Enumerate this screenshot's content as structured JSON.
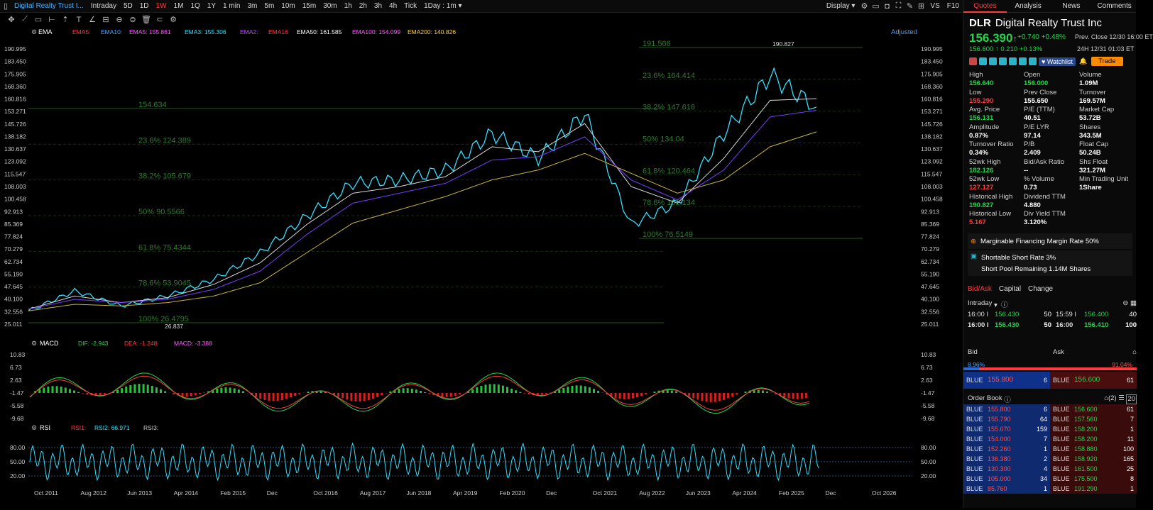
{
  "toolbar": {
    "title": "Digital Realty Trust I...",
    "periods": [
      "Intraday",
      "5D",
      "1D",
      "1W",
      "1M",
      "1Q",
      "1Y",
      "1 min",
      "3m",
      "5m",
      "10m",
      "15m",
      "30m",
      "1h",
      "2h",
      "3h",
      "4h",
      "Tick"
    ],
    "active_period": "1W",
    "interval": "1Day : 1m",
    "display": "Display",
    "vs": "VS",
    "f10": "F10"
  },
  "indicators": {
    "ema": {
      "name": "EMA",
      "items": [
        {
          "label": "EMA5:",
          "value": "",
          "color": "#ff3b3b"
        },
        {
          "label": "EMA10:",
          "value": "",
          "color": "#4aa3ff"
        },
        {
          "label": "EMA5:",
          "value": "155.861",
          "color": "#ff5cff"
        },
        {
          "label": "EMA3:",
          "value": "155.306",
          "color": "#33e0ff"
        },
        {
          "label": "EMA2:",
          "value": "",
          "color": "#c04cff"
        },
        {
          "label": "EMA16",
          "value": "",
          "color": "#ff3b3b"
        },
        {
          "label": "EMA50:",
          "value": "161.585",
          "color": "#ffffff"
        },
        {
          "label": "EMA100:",
          "value": "154.099",
          "color": "#ff5cff"
        },
        {
          "label": "EMA200:",
          "value": "140.826",
          "color": "#ffd23b"
        }
      ]
    },
    "macd": {
      "name": "MACD",
      "dif": "DIF: -2.943",
      "dea": "DEA: -1.248",
      "macd": "MACD: -3.388"
    },
    "rsi": {
      "name": "RSI",
      "rsi1": "RSI1:",
      "rsi2": "RSI2: 66.971",
      "rsi3": "RSI3:"
    },
    "adjusted": "Adjusted"
  },
  "price_axis": [
    "190.995",
    "183.450",
    "175.905",
    "168.360",
    "160.816",
    "153.271",
    "145.726",
    "138.182",
    "130.637",
    "123.092",
    "115.547",
    "108.003",
    "100.458",
    "92.913",
    "85.369",
    "77.824",
    "70.279",
    "62.734",
    "55.190",
    "47.645",
    "40.100",
    "32.556",
    "25.011"
  ],
  "macd_axis": [
    "10.83",
    "6.73",
    "2.63",
    "-1.47",
    "-5.58",
    "-9.68"
  ],
  "rsi_axis": [
    "80.00",
    "50.00",
    "20.00"
  ],
  "time_axis": [
    "Oct 2011",
    "Aug 2012",
    "Jun 2013",
    "Apr 2014",
    "Feb 2015",
    "Dec",
    "Oct 2016",
    "Aug 2017",
    "Jun 2018",
    "Apr 2019",
    "Feb 2020",
    "Dec",
    "Oct 2021",
    "Aug 2022",
    "Jun 2023",
    "Apr 2024",
    "Feb 2025",
    "Dec",
    "Oct 2026"
  ],
  "fib_left": [
    "154.634",
    "23.6% 124.389",
    "38.2% 105.679",
    "50% 90.5566",
    "61.8% 75.4344",
    "78.6% 53.9045",
    "100% 26.4795"
  ],
  "fib_right": [
    "191.566",
    "23.6% 164.414",
    "38.2% 147.616",
    "50% 134.04",
    "61.8% 120.464",
    "78.6% 101.134",
    "100% 76.5149"
  ],
  "annotations": {
    "high": "190.827",
    "low": "26.837"
  },
  "chart_data": {
    "type": "line",
    "title": "",
    "xlabel": "",
    "ylabel": "",
    "ylim": [
      25.011,
      190.995
    ],
    "x": [
      "Oct 2011",
      "Aug 2012",
      "Jun 2013",
      "Apr 2014",
      "Feb 2015",
      "Dec 2015",
      "Oct 2016",
      "Aug 2017",
      "Jun 2018",
      "Apr 2019",
      "Feb 2020",
      "Dec 2020",
      "Oct 2021",
      "Aug 2022",
      "Jun 2023",
      "Apr 2024",
      "Feb 2025",
      "Dec 2025"
    ],
    "series": [
      {
        "name": "Price",
        "values": [
          33,
          45,
          36,
          42,
          52,
          68,
          90,
          110,
          112,
          118,
          140,
          125,
          152,
          85,
          98,
          140,
          175,
          156
        ]
      },
      {
        "name": "EMA50",
        "values": [
          34,
          42,
          38,
          41,
          49,
          62,
          85,
          104,
          108,
          114,
          132,
          129,
          146,
          108,
          98,
          125,
          160,
          161
        ]
      },
      {
        "name": "EMA100",
        "values": [
          34,
          40,
          38,
          40,
          46,
          57,
          79,
          98,
          104,
          110,
          124,
          126,
          138,
          112,
          100,
          118,
          150,
          154
        ]
      },
      {
        "name": "EMA200",
        "values": [
          33,
          37,
          36,
          38,
          42,
          50,
          68,
          86,
          94,
          102,
          112,
          118,
          128,
          116,
          104,
          112,
          132,
          141
        ]
      }
    ]
  },
  "quote": {
    "tabs": [
      "Quotes",
      "Analysis",
      "News",
      "Comments"
    ],
    "active_tab": "Quotes",
    "symbol": "DLR",
    "name": "Digital Realty Trust Inc",
    "price": "156.390",
    "arrow": "↑",
    "change": "+0.740 +0.48%",
    "prev_close": "Prev.  Close 12/30 16:00 ET",
    "ah_price": "156.600 ↑ 0.210 +0.13%",
    "ah_time": "24H 12/31 01:03 ET",
    "watchlist": "Watchlist",
    "trade": "Trade",
    "stats": [
      {
        "label": "High",
        "value": "156.640",
        "cls": "g"
      },
      {
        "label": "Open",
        "value": "156.000",
        "cls": "g"
      },
      {
        "label": "Volume",
        "value": "1.09M",
        "cls": ""
      },
      {
        "label": "Low",
        "value": "155.290",
        "cls": "r"
      },
      {
        "label": "Prev Close",
        "value": "155.650",
        "cls": ""
      },
      {
        "label": "Turnover",
        "value": "169.57M",
        "cls": ""
      },
      {
        "label": "Avg. Price",
        "value": "156.131",
        "cls": "g"
      },
      {
        "label": "P/E (TTM)",
        "value": "40.51",
        "cls": ""
      },
      {
        "label": "Market Cap",
        "value": "53.72B",
        "cls": ""
      },
      {
        "label": "Amplitude",
        "value": "0.87%",
        "cls": ""
      },
      {
        "label": "P/E LYR",
        "value": "97.14",
        "cls": ""
      },
      {
        "label": "Shares",
        "value": "343.5M",
        "cls": ""
      },
      {
        "label": "Turnover Ratio",
        "value": "0.34%",
        "cls": ""
      },
      {
        "label": "P/B",
        "value": "2.409",
        "cls": ""
      },
      {
        "label": "Float Cap",
        "value": "50.24B",
        "cls": ""
      },
      {
        "label": "52wk High",
        "value": "182.126",
        "cls": "g"
      },
      {
        "label": "Bid/Ask Ratio",
        "value": "--",
        "cls": ""
      },
      {
        "label": "Shs Float",
        "value": "321.27M",
        "cls": ""
      },
      {
        "label": "52wk Low",
        "value": "127.127",
        "cls": "r"
      },
      {
        "label": "% Volume",
        "value": "0.73",
        "cls": ""
      },
      {
        "label": "Min Trading Unit",
        "value": "1Share",
        "cls": ""
      },
      {
        "label": "Historical High",
        "value": "190.827",
        "cls": "g"
      },
      {
        "label": "Dividend TTM",
        "value": "4.880",
        "cls": ""
      },
      {
        "label": "",
        "value": "",
        "cls": ""
      },
      {
        "label": "Historical Low",
        "value": "5.167",
        "cls": "r"
      },
      {
        "label": "Div Yield TTM",
        "value": "3.120%",
        "cls": ""
      },
      {
        "label": "",
        "value": "",
        "cls": ""
      }
    ],
    "margin": "Marginable Financing Margin Rate 50%",
    "short_rate": "Shortable Short Rate 3%",
    "short_pool": "Short Pool Remaining 1.14M Shares",
    "sub_tabs": [
      "Bid/Ask",
      "Capital",
      "Change"
    ],
    "intraday": "Intraday",
    "trades": [
      [
        "16:00 I",
        "156.430",
        "50",
        "15:59 I",
        "156.400",
        "40"
      ],
      [
        "16:00 I",
        "156.430",
        "50",
        "16:00",
        "156.410",
        "100"
      ]
    ],
    "bid": "Bid",
    "ask": "Ask",
    "bid_pct": "8.96%",
    "ask_pct": "91.04%",
    "bid_frac": 0.0896,
    "best_bid": {
      "ex": "BLUE",
      "price": "155.800",
      "qty": "6"
    },
    "best_ask": {
      "ex": "BLUE",
      "price": "156.600",
      "qty": "61"
    },
    "order_book_title": "Order Book",
    "order_book_count": "(2)",
    "depth": "20",
    "book": [
      [
        "BLUE",
        "155.800",
        "6",
        "BLUE",
        "156.600",
        "61"
      ],
      [
        "BLUE",
        "155.790",
        "64",
        "BLUE",
        "157.560",
        "7"
      ],
      [
        "BLUE",
        "155.070",
        "159",
        "BLUE",
        "158.200",
        "1"
      ],
      [
        "BLUE",
        "154.000",
        "7",
        "BLUE",
        "158.200",
        "11"
      ],
      [
        "BLUE",
        "152.260",
        "1",
        "BLUE",
        "158.880",
        "100"
      ],
      [
        "BLUE",
        "136.380",
        "2",
        "BLUE",
        "158.920",
        "165"
      ],
      [
        "BLUE",
        "130.300",
        "4",
        "BLUE",
        "161.500",
        "25"
      ],
      [
        "BLUE",
        "105.000",
        "34",
        "BLUE",
        "175.500",
        "8"
      ],
      [
        "BLUE",
        "85.760",
        "1",
        "BLUE",
        "191.290",
        "1"
      ]
    ]
  }
}
